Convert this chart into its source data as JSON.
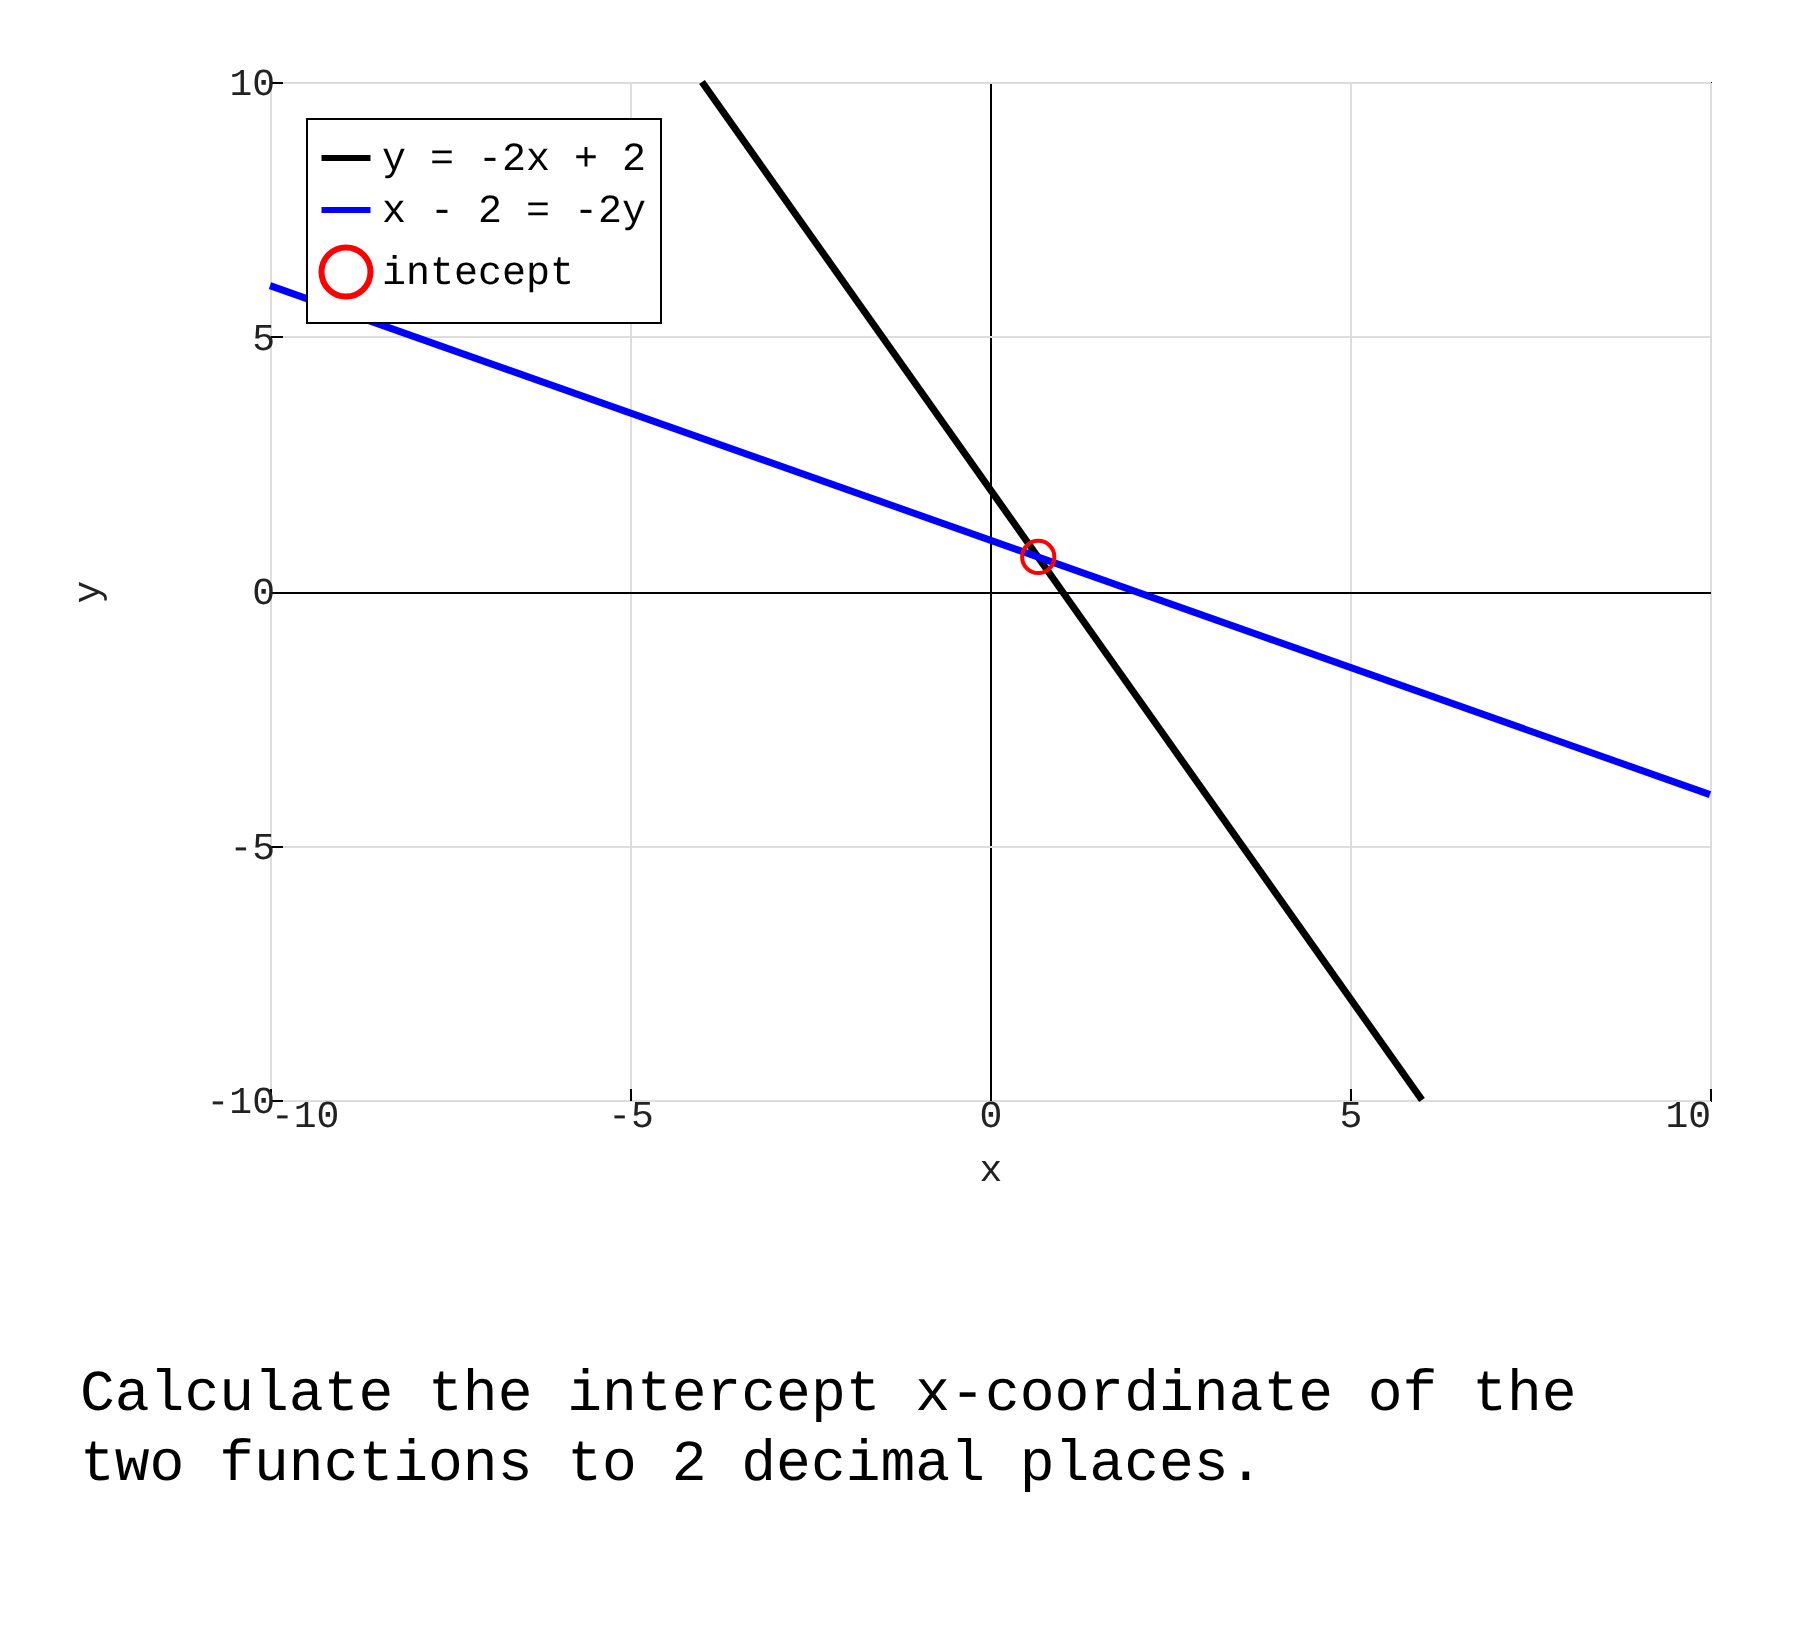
{
  "chart_data": {
    "type": "line",
    "xlabel": "x",
    "ylabel": "y",
    "xlim": [
      -10,
      10
    ],
    "ylim": [
      -10,
      10
    ],
    "xticks": [
      -10,
      -5,
      0,
      5,
      10
    ],
    "yticks": [
      -10,
      -5,
      0,
      5,
      10
    ],
    "grid": true,
    "legend": "top left",
    "marker": "none",
    "line_style": "solid",
    "series": [
      {
        "name": "y = -2x + 2",
        "color": "#000000",
        "x": [
          -4,
          6
        ],
        "values": [
          10,
          -10
        ]
      },
      {
        "name": "x - 2 = -2y",
        "color": "#0000ff",
        "x": [
          -10,
          10
        ],
        "values": [
          6,
          -4
        ]
      },
      {
        "name": "intecept",
        "type": "scatter",
        "marker": "circle",
        "color": "#ff0000",
        "x": [
          0.67
        ],
        "values": [
          0.67
        ]
      }
    ],
    "annotations": [
      "Calculate the intercept x-coordinate of the two functions to 2 decimal places."
    ]
  }
}
